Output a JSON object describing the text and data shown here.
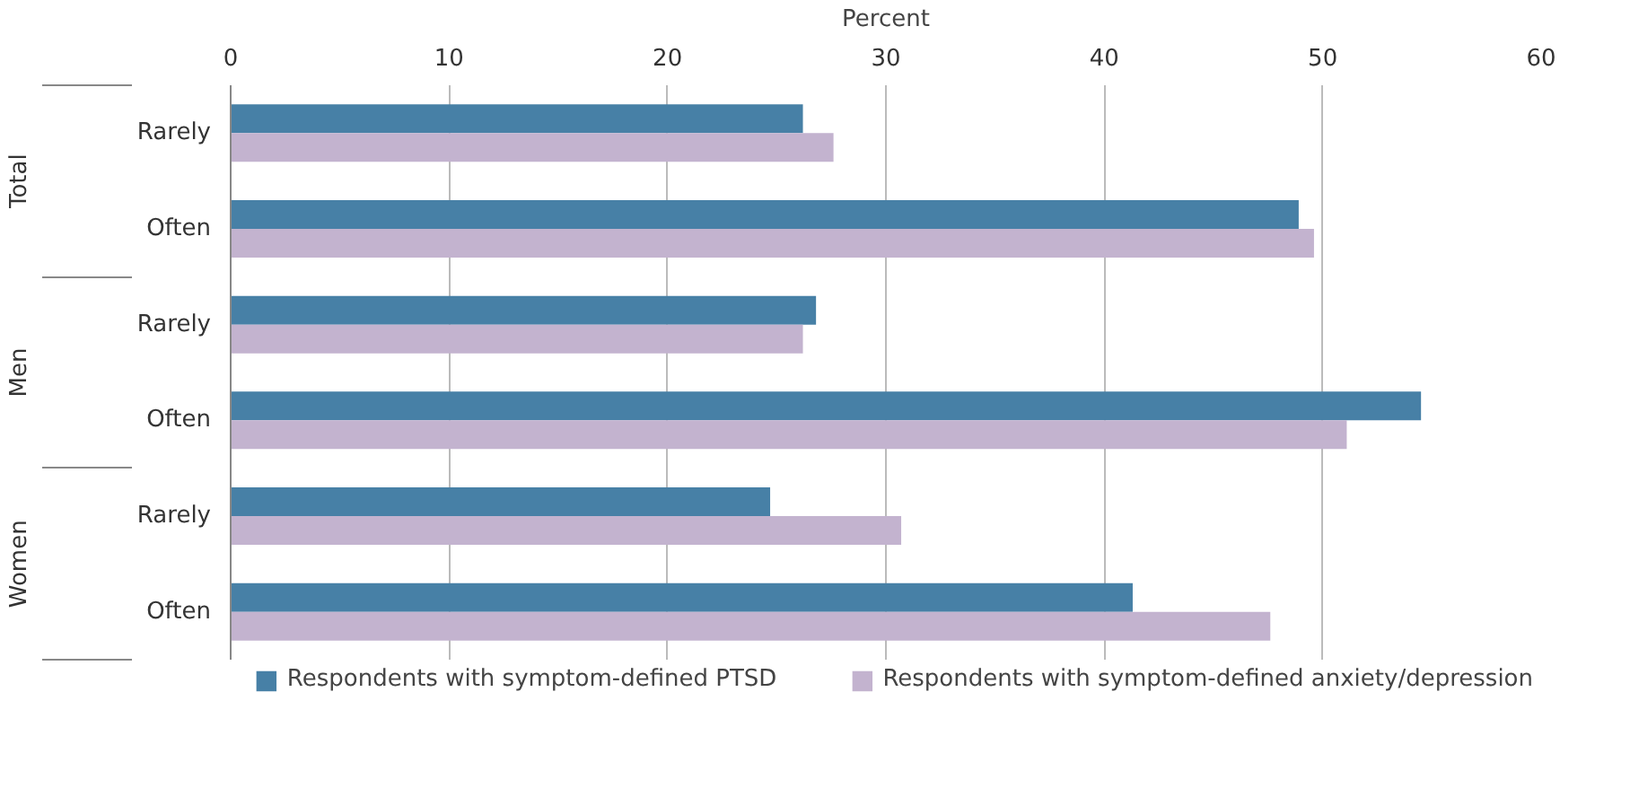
{
  "chart_data": {
    "type": "bar",
    "orientation": "horizontal",
    "xlabel": "Percent",
    "categories": [
      "Rarely",
      "Often",
      "Rarely",
      "Often",
      "Rarely",
      "Often"
    ],
    "annotations": [
      "Total",
      "Men",
      "Women"
    ],
    "series": [
      {
        "name": "Respondents with symptom-defined PTSD",
        "color": "#4780a6",
        "values": [
          26.2,
          48.9,
          26.8,
          54.5,
          24.7,
          41.3
        ]
      },
      {
        "name": "Respondents with symptom-defined anxiety/depression",
        "color": "#c3b3cf",
        "values": [
          27.6,
          49.6,
          26.2,
          51.1,
          30.7,
          47.6
        ]
      }
    ],
    "xlim": [
      0,
      60
    ],
    "xticks": [
      0,
      10,
      20,
      30,
      40,
      50,
      60
    ],
    "grid": "x",
    "legend": "bottom"
  }
}
